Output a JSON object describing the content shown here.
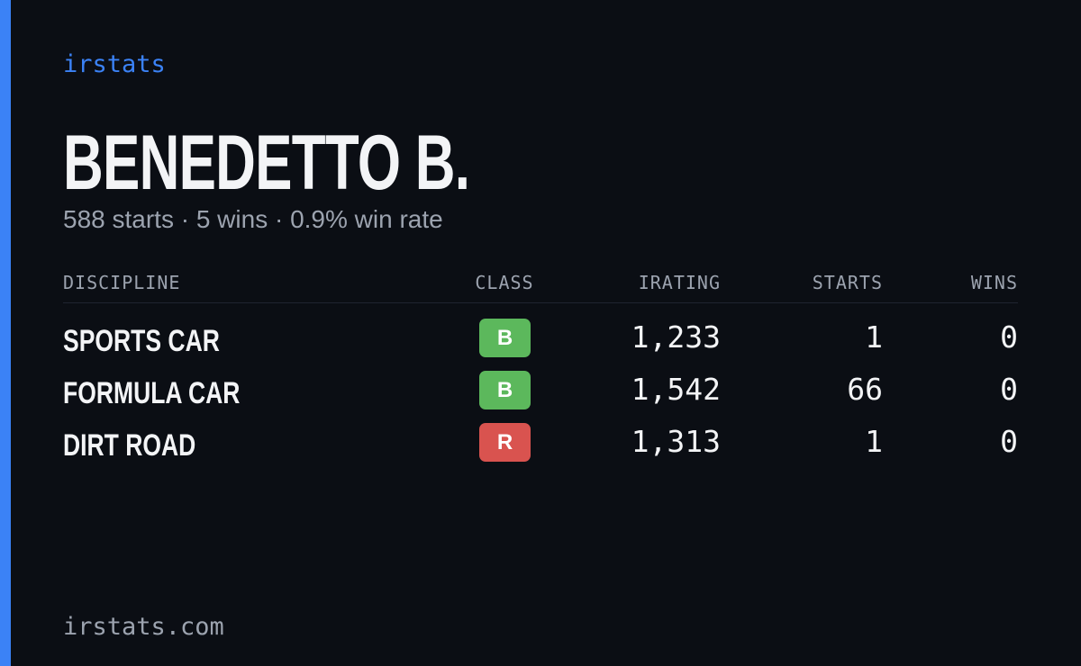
{
  "brand": "irstats",
  "driver": {
    "name": "BENEDETTO B.",
    "summary": "588 starts · 5 wins · 0.9% win rate"
  },
  "table": {
    "headers": [
      "DISCIPLINE",
      "CLASS",
      "IRATING",
      "STARTS",
      "WINS"
    ],
    "rows": [
      {
        "discipline": "SPORTS CAR",
        "class": "B",
        "class_color": "#5cb85c",
        "irating": "1,233",
        "starts": "1",
        "wins": "0"
      },
      {
        "discipline": "FORMULA CAR",
        "class": "B",
        "class_color": "#5cb85c",
        "irating": "1,542",
        "starts": "66",
        "wins": "0"
      },
      {
        "discipline": "DIRT ROAD",
        "class": "R",
        "class_color": "#d9534f",
        "irating": "1,313",
        "starts": "1",
        "wins": "0"
      }
    ]
  },
  "footer": "irstats.com"
}
